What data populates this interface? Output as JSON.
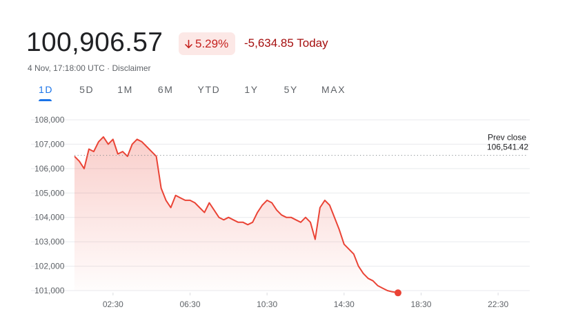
{
  "header": {
    "price": "100,906.57",
    "change_percent": "5.29%",
    "change_abs": "-5,634.85 Today",
    "timestamp": "4 Nov, 17:18:00 UTC",
    "separator": " · ",
    "disclaimer": "Disclaimer",
    "arrow_icon": "arrow-down-icon"
  },
  "tabs": [
    {
      "label": "1D",
      "active": true
    },
    {
      "label": "5D",
      "active": false
    },
    {
      "label": "1M",
      "active": false
    },
    {
      "label": "6M",
      "active": false
    },
    {
      "label": "YTD",
      "active": false
    },
    {
      "label": "1Y",
      "active": false
    },
    {
      "label": "5Y",
      "active": false
    },
    {
      "label": "MAX",
      "active": false
    }
  ],
  "colors": {
    "line": "#ea4335",
    "down_badge_bg": "#fce8e6",
    "down_text": "#c5221f",
    "accent": "#1a73e8"
  },
  "chart_data": {
    "type": "area",
    "x_unit": "UTC time",
    "xlim": [
      "00:30",
      "24:00"
    ],
    "ylim": [
      101000,
      108000
    ],
    "y_ticks": [
      108000,
      107000,
      106000,
      105000,
      104000,
      103000,
      102000,
      101000
    ],
    "y_tick_labels": [
      "108,000",
      "107,000",
      "106,000",
      "105,000",
      "104,000",
      "103,000",
      "102,000",
      "101,000"
    ],
    "x_ticks": [
      "02:30",
      "06:30",
      "10:30",
      "14:30",
      "18:30",
      "22:30"
    ],
    "prev_close": {
      "label_line1": "Prev close",
      "label_line2": "106,541.42",
      "value": 106541.42
    },
    "grid": true,
    "series": [
      {
        "x": [
          "00:30",
          "00:45",
          "01:00",
          "01:15",
          "01:30",
          "01:45",
          "02:00",
          "02:15",
          "02:30",
          "02:45",
          "03:00",
          "03:15",
          "03:30",
          "03:45",
          "04:00",
          "04:15",
          "04:30",
          "04:45",
          "05:00",
          "05:15",
          "05:30",
          "05:45",
          "06:00",
          "06:15",
          "06:30",
          "06:45",
          "07:00",
          "07:15",
          "07:30",
          "07:45",
          "08:00",
          "08:15",
          "08:30",
          "08:45",
          "09:00",
          "09:15",
          "09:30",
          "09:45",
          "10:00",
          "10:15",
          "10:30",
          "10:45",
          "11:00",
          "11:15",
          "11:30",
          "11:45",
          "12:00",
          "12:15",
          "12:30",
          "12:45",
          "13:00",
          "13:15",
          "13:30",
          "13:45",
          "14:00",
          "14:15",
          "14:30",
          "14:45",
          "15:00",
          "15:15",
          "15:30",
          "15:45",
          "16:00",
          "16:15",
          "16:30",
          "16:45",
          "17:00",
          "17:15",
          "17:18"
        ],
        "y": [
          106500,
          106300,
          106000,
          106800,
          106700,
          107100,
          107300,
          107000,
          107200,
          106600,
          106700,
          106500,
          107000,
          107200,
          107100,
          106900,
          106700,
          106500,
          105200,
          104700,
          104400,
          104900,
          104800,
          104700,
          104700,
          104600,
          104400,
          104200,
          104600,
          104300,
          104000,
          103900,
          104000,
          103900,
          103800,
          103800,
          103700,
          103800,
          104200,
          104500,
          104700,
          104600,
          104300,
          104100,
          104000,
          104000,
          103900,
          103800,
          104000,
          103800,
          103100,
          104400,
          104700,
          104500,
          104000,
          103500,
          102900,
          102700,
          102500,
          102000,
          101700,
          101500,
          101400,
          101200,
          101100,
          101000,
          100950,
          100920,
          100906.57
        ]
      }
    ]
  }
}
